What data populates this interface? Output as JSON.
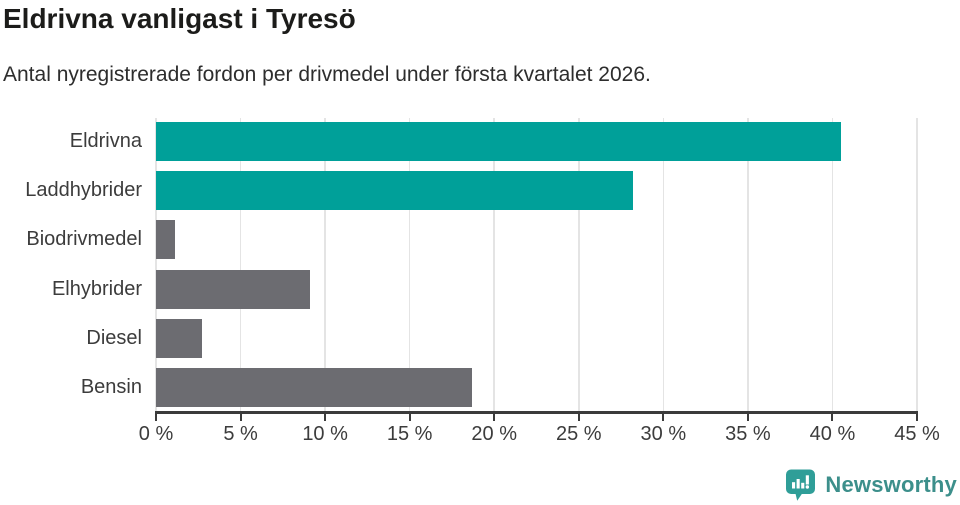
{
  "page": {
    "title": "Eldrivna vanligast i Tyresö",
    "subtitle": "Antal nyregistrerade fordon per drivmedel under första kvartalet 2026."
  },
  "chart_data": {
    "type": "bar",
    "orientation": "horizontal",
    "title": "Eldrivna vanligast i Tyresö",
    "subtitle": "Antal nyregistrerade fordon per drivmedel under första kvartalet 2026.",
    "categories": [
      "Eldrivna",
      "Laddhybrider",
      "Biodrivmedel",
      "Elhybrider",
      "Diesel",
      "Bensin"
    ],
    "values": [
      40.5,
      28.2,
      1.1,
      9.1,
      2.7,
      18.7
    ],
    "value_unit": "%",
    "xlabel": "",
    "ylabel": "",
    "xlim": [
      0,
      45
    ],
    "x_tick_values": [
      0,
      5,
      10,
      15,
      20,
      25,
      30,
      35,
      40,
      45
    ],
    "x_tick_labels": [
      "0 %",
      "5 %",
      "10 %",
      "15 %",
      "20 %",
      "25 %",
      "30 %",
      "35 %",
      "40 %",
      "45 %"
    ],
    "grid": "vertical-only",
    "legend": "none",
    "bar_colors": [
      "#00a099",
      "#00a099",
      "#6c6c71",
      "#6c6c71",
      "#6c6c71",
      "#6c6c71"
    ],
    "highlight_color": "#00a099",
    "default_color": "#6c6c71"
  },
  "branding": {
    "logo_text": "Newsworthy",
    "logo_text_color": "#3c8f8b",
    "logo_icon": "newsworthy-speech-bubble-bar-chart-icon",
    "logo_icon_color": "#2f9e98"
  }
}
